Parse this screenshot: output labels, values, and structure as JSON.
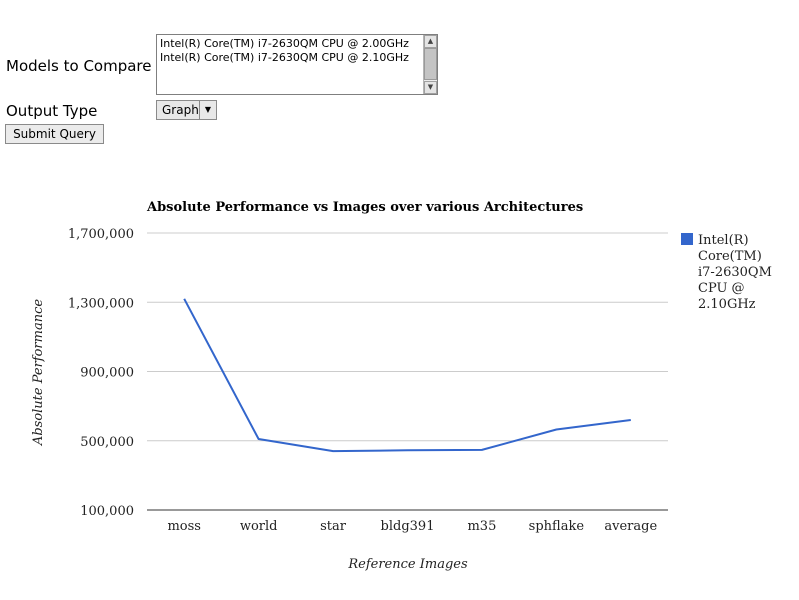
{
  "form": {
    "models_label": "Models to Compare",
    "models_options": [
      "Intel(R) Core(TM) i7-2630QM CPU @ 2.00GHz",
      "Intel(R) Core(TM) i7-2630QM CPU @ 2.10GHz"
    ],
    "output_label": "Output Type",
    "output_selected": "Graph",
    "submit_label": "Submit Query"
  },
  "chart_data": {
    "type": "line",
    "title": "Absolute Performance vs Images over various Architectures",
    "xlabel": "Reference Images",
    "ylabel": "Absolute Performance",
    "categories": [
      "moss",
      "world",
      "star",
      "bldg391",
      "m35",
      "sphflake",
      "average"
    ],
    "yticks": [
      "100,000",
      "500,000",
      "900,000",
      "1,300,000",
      "1,700,000"
    ],
    "ylim": [
      100000,
      1700000
    ],
    "grid": true,
    "legend_position": "right",
    "series": [
      {
        "name": "Intel(R) Core(TM) i7-2630QM CPU @ 2.10GHz",
        "legend_lines": [
          "Intel(R)",
          "Core(TM)",
          "i7-2630QM",
          "CPU @",
          "2.10GHz"
        ],
        "color": "#3366cc",
        "values": [
          1320000,
          510000,
          440000,
          445000,
          447000,
          565000,
          620000
        ]
      }
    ]
  }
}
